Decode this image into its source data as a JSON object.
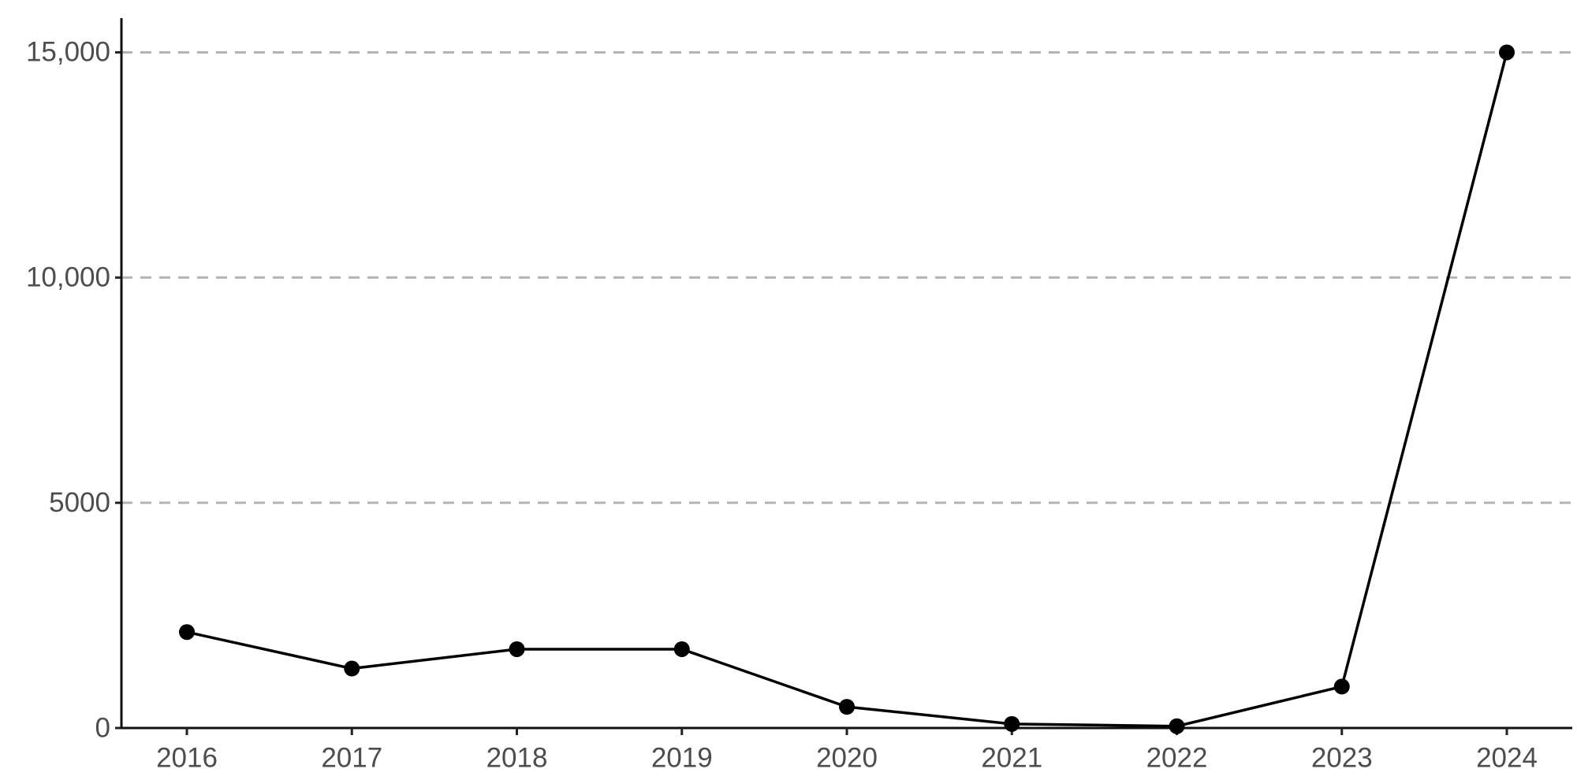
{
  "chart_data": {
    "type": "line",
    "categories": [
      "2016",
      "2017",
      "2018",
      "2019",
      "2020",
      "2021",
      "2022",
      "2023",
      "2024"
    ],
    "values": [
      2130,
      1320,
      1750,
      1750,
      470,
      90,
      40,
      920,
      15000
    ],
    "color": "#000000",
    "ylim": [
      0,
      15760
    ],
    "yticks": [
      0,
      5000,
      {
        "value": 10000,
        "label": "10,000"
      },
      {
        "value": 15000,
        "label": "15,000"
      }
    ],
    "grid": true
  }
}
